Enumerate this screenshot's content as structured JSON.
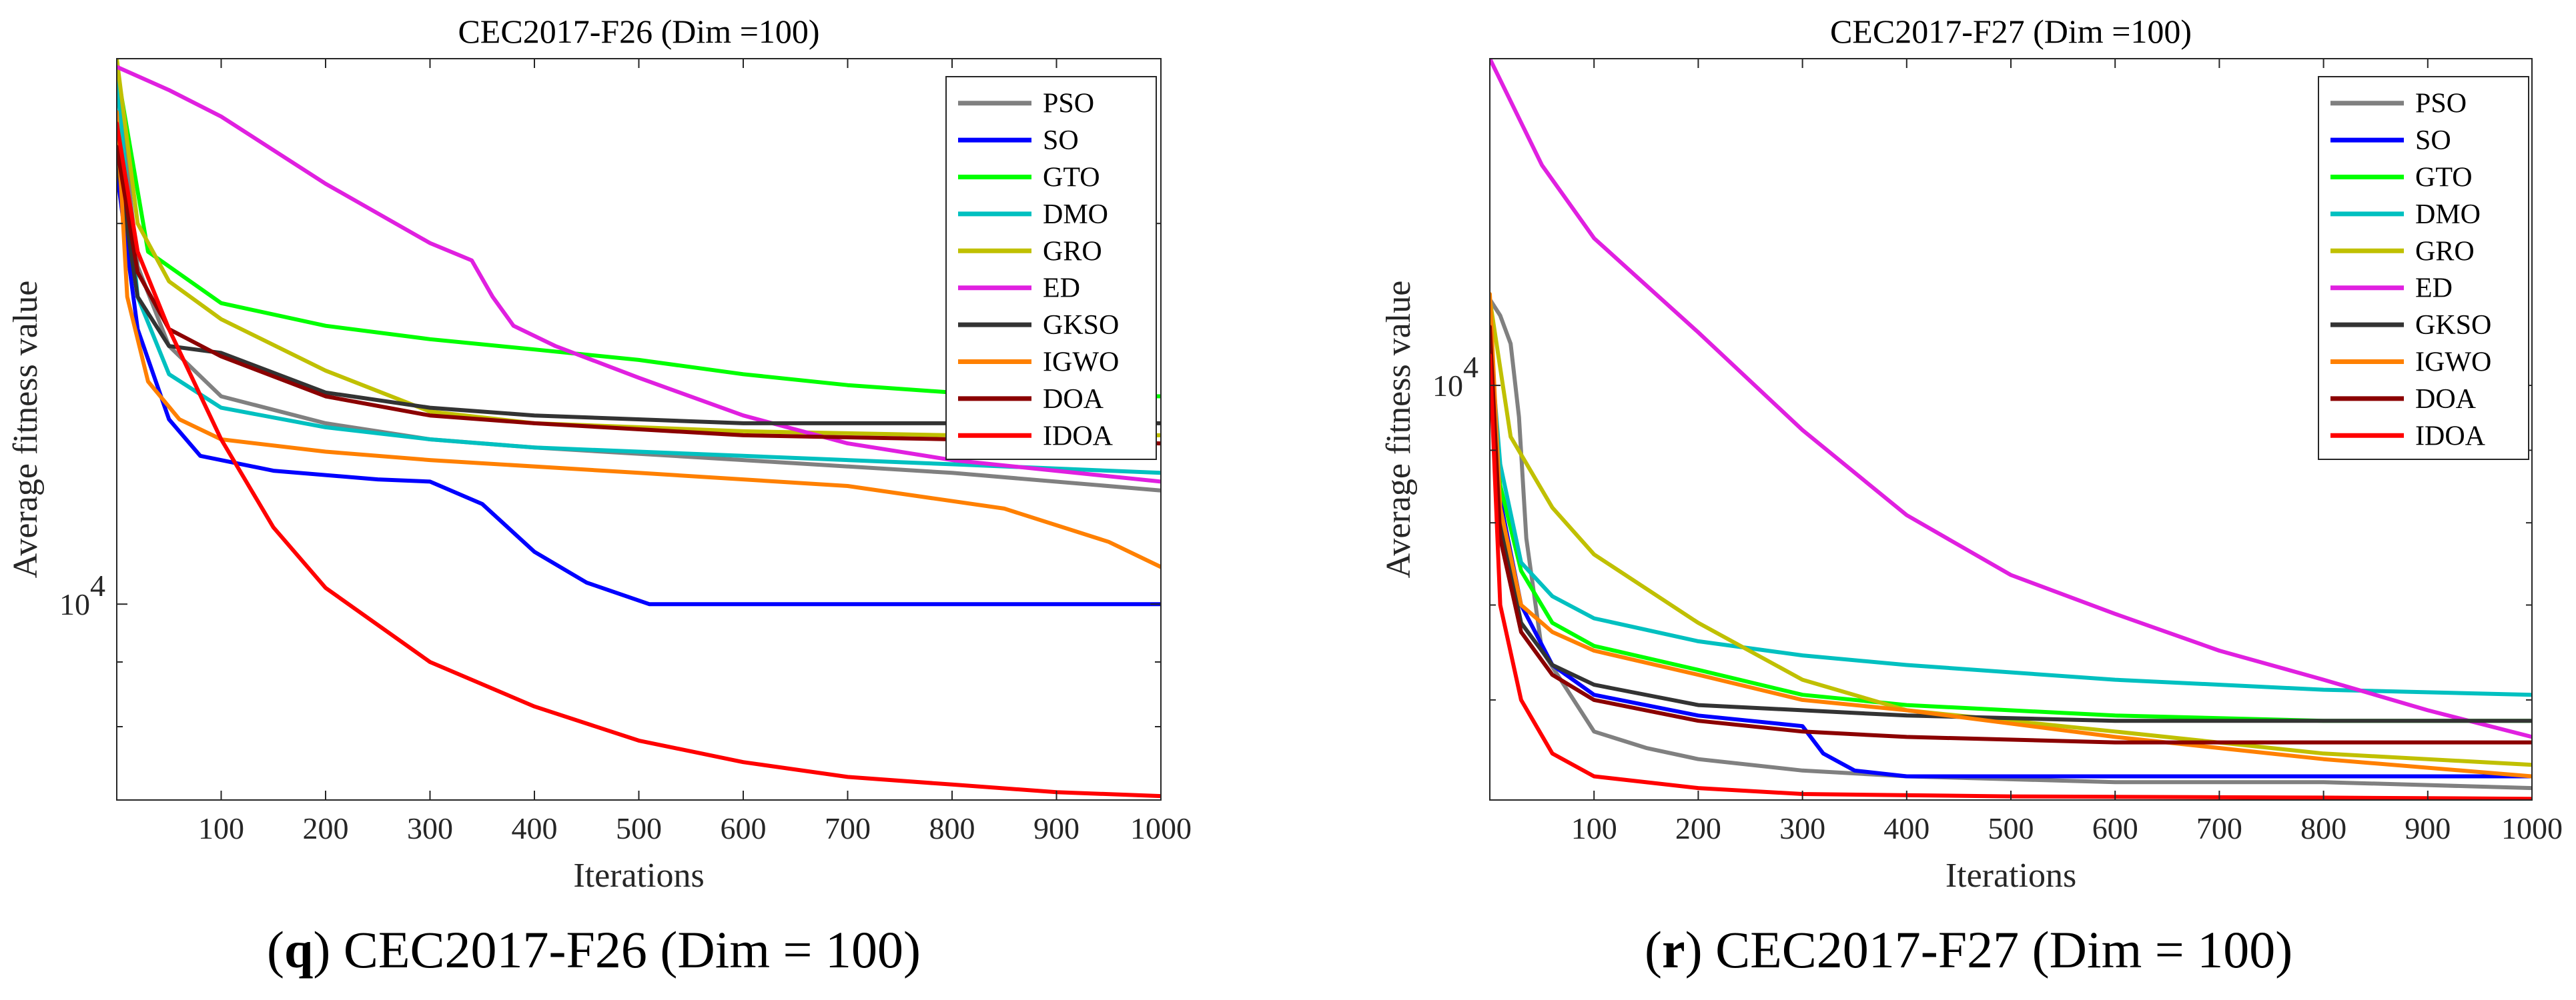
{
  "chart_data": [
    {
      "type": "line",
      "title": "CEC2017-F26 (Dim =100)",
      "caption_letter": "q",
      "caption_text": "CEC2017-F26 (Dim = 100)",
      "xlabel": "Iterations",
      "ylabel": "Average fitness value",
      "xlim": [
        0,
        1000
      ],
      "ylim": [
        7000,
        27000
      ],
      "yscale": "log",
      "xticks": [
        100,
        200,
        300,
        400,
        500,
        600,
        700,
        800,
        900,
        1000
      ],
      "ytick_label": {
        "base": "10",
        "exp": "4",
        "value": 10000
      },
      "legend_position": "top-right",
      "series": [
        {
          "name": "PSO",
          "color": "#808080",
          "points": [
            [
              0,
              26500
            ],
            [
              20,
              18500
            ],
            [
              50,
              16000
            ],
            [
              100,
              14600
            ],
            [
              200,
              13900
            ],
            [
              300,
              13500
            ],
            [
              400,
              13300
            ],
            [
              600,
              13000
            ],
            [
              800,
              12700
            ],
            [
              1000,
              12300
            ]
          ]
        },
        {
          "name": "SO",
          "color": "#0000ff",
          "points": [
            [
              0,
              22000
            ],
            [
              20,
              16500
            ],
            [
              50,
              14000
            ],
            [
              80,
              13100
            ],
            [
              150,
              12750
            ],
            [
              250,
              12550
            ],
            [
              300,
              12500
            ],
            [
              350,
              12000
            ],
            [
              400,
              11000
            ],
            [
              450,
              10400
            ],
            [
              510,
              10000
            ],
            [
              1000,
              10000
            ]
          ]
        },
        {
          "name": "GTO",
          "color": "#00ff00",
          "points": [
            [
              0,
              26500
            ],
            [
              30,
              19000
            ],
            [
              100,
              17300
            ],
            [
              200,
              16600
            ],
            [
              300,
              16200
            ],
            [
              400,
              15900
            ],
            [
              500,
              15600
            ],
            [
              600,
              15200
            ],
            [
              700,
              14900
            ],
            [
              800,
              14700
            ],
            [
              1000,
              14600
            ]
          ]
        },
        {
          "name": "DMO",
          "color": "#00c0c0",
          "points": [
            [
              0,
              26000
            ],
            [
              20,
              17500
            ],
            [
              50,
              15200
            ],
            [
              100,
              14300
            ],
            [
              200,
              13800
            ],
            [
              300,
              13500
            ],
            [
              400,
              13300
            ],
            [
              600,
              13100
            ],
            [
              800,
              12900
            ],
            [
              1000,
              12700
            ]
          ]
        },
        {
          "name": "GRO",
          "color": "#c0c000",
          "points": [
            [
              0,
              27000
            ],
            [
              20,
              20000
            ],
            [
              50,
              18000
            ],
            [
              100,
              16800
            ],
            [
              200,
              15300
            ],
            [
              300,
              14200
            ],
            [
              400,
              13900
            ],
            [
              600,
              13700
            ],
            [
              800,
              13600
            ],
            [
              1000,
              13600
            ]
          ]
        },
        {
          "name": "ED",
          "color": "#e020e0",
          "points": [
            [
              0,
              26600
            ],
            [
              50,
              25500
            ],
            [
              100,
              24300
            ],
            [
              200,
              21500
            ],
            [
              300,
              19300
            ],
            [
              340,
              18700
            ],
            [
              360,
              17500
            ],
            [
              380,
              16600
            ],
            [
              420,
              16000
            ],
            [
              500,
              15100
            ],
            [
              600,
              14100
            ],
            [
              700,
              13400
            ],
            [
              800,
              13000
            ],
            [
              1000,
              12500
            ]
          ]
        },
        {
          "name": "GKSO",
          "color": "#333333",
          "points": [
            [
              0,
              22500
            ],
            [
              20,
              17500
            ],
            [
              50,
              16000
            ],
            [
              100,
              15800
            ],
            [
              200,
              14700
            ],
            [
              300,
              14300
            ],
            [
              400,
              14100
            ],
            [
              600,
              13900
            ],
            [
              800,
              13900
            ],
            [
              1000,
              13900
            ]
          ]
        },
        {
          "name": "IGWO",
          "color": "#ff8000",
          "points": [
            [
              0,
              24500
            ],
            [
              10,
              17500
            ],
            [
              30,
              15000
            ],
            [
              60,
              14000
            ],
            [
              100,
              13500
            ],
            [
              200,
              13200
            ],
            [
              300,
              13000
            ],
            [
              500,
              12700
            ],
            [
              700,
              12400
            ],
            [
              850,
              11900
            ],
            [
              950,
              11200
            ],
            [
              1000,
              10700
            ]
          ]
        },
        {
          "name": "DOA",
          "color": "#8b0000",
          "points": [
            [
              0,
              23000
            ],
            [
              20,
              18300
            ],
            [
              50,
              16500
            ],
            [
              100,
              15700
            ],
            [
              200,
              14600
            ],
            [
              300,
              14100
            ],
            [
              400,
              13900
            ],
            [
              600,
              13600
            ],
            [
              800,
              13500
            ],
            [
              1000,
              13400
            ]
          ]
        },
        {
          "name": "IDOA",
          "color": "#ff0000",
          "points": [
            [
              0,
              24000
            ],
            [
              20,
              19000
            ],
            [
              50,
              16500
            ],
            [
              100,
              13500
            ],
            [
              150,
              11500
            ],
            [
              200,
              10300
            ],
            [
              300,
              9000
            ],
            [
              400,
              8300
            ],
            [
              500,
              7800
            ],
            [
              600,
              7500
            ],
            [
              700,
              7300
            ],
            [
              800,
              7200
            ],
            [
              900,
              7100
            ],
            [
              1000,
              7050
            ]
          ]
        }
      ]
    },
    {
      "type": "line",
      "title": "CEC2017-F27 (Dim =100)",
      "caption_letter": "r",
      "caption_text": "CEC2017-F27 (Dim = 100)",
      "xlabel": "Iterations",
      "ylabel": "Average fitness value",
      "xlim": [
        0,
        1000
      ],
      "ylim": [
        5100,
        17000
      ],
      "yscale": "log",
      "xticks": [
        100,
        200,
        300,
        400,
        500,
        600,
        700,
        800,
        900,
        1000
      ],
      "ytick_label": {
        "base": "10",
        "exp": "4",
        "value": 10000
      },
      "legend_position": "top-right",
      "series": [
        {
          "name": "PSO",
          "color": "#808080",
          "points": [
            [
              0,
              11500
            ],
            [
              10,
              11200
            ],
            [
              20,
              10700
            ],
            [
              28,
              9500
            ],
            [
              35,
              7800
            ],
            [
              50,
              6500
            ],
            [
              100,
              5700
            ],
            [
              150,
              5550
            ],
            [
              200,
              5450
            ],
            [
              300,
              5350
            ],
            [
              400,
              5300
            ],
            [
              600,
              5250
            ],
            [
              800,
              5250
            ],
            [
              1000,
              5200
            ]
          ]
        },
        {
          "name": "SO",
          "color": "#0000ff",
          "points": [
            [
              0,
              10000
            ],
            [
              10,
              8300
            ],
            [
              30,
              7000
            ],
            [
              60,
              6350
            ],
            [
              100,
              6050
            ],
            [
              200,
              5850
            ],
            [
              300,
              5750
            ],
            [
              320,
              5500
            ],
            [
              350,
              5350
            ],
            [
              400,
              5300
            ],
            [
              600,
              5300
            ],
            [
              800,
              5300
            ],
            [
              1000,
              5300
            ]
          ]
        },
        {
          "name": "GTO",
          "color": "#00ff00",
          "points": [
            [
              0,
              10000
            ],
            [
              10,
              8500
            ],
            [
              30,
              7400
            ],
            [
              60,
              6800
            ],
            [
              100,
              6550
            ],
            [
              200,
              6300
            ],
            [
              300,
              6050
            ],
            [
              400,
              5950
            ],
            [
              600,
              5850
            ],
            [
              800,
              5800
            ],
            [
              1000,
              5800
            ]
          ]
        },
        {
          "name": "DMO",
          "color": "#00c0c0",
          "points": [
            [
              0,
              10800
            ],
            [
              10,
              8800
            ],
            [
              30,
              7500
            ],
            [
              60,
              7100
            ],
            [
              100,
              6850
            ],
            [
              200,
              6600
            ],
            [
              300,
              6450
            ],
            [
              400,
              6350
            ],
            [
              600,
              6200
            ],
            [
              800,
              6100
            ],
            [
              1000,
              6050
            ]
          ]
        },
        {
          "name": "GRO",
          "color": "#c0c000",
          "points": [
            [
              0,
              11500
            ],
            [
              20,
              9200
            ],
            [
              60,
              8200
            ],
            [
              100,
              7600
            ],
            [
              200,
              6800
            ],
            [
              300,
              6200
            ],
            [
              400,
              5900
            ],
            [
              600,
              5700
            ],
            [
              800,
              5500
            ],
            [
              1000,
              5400
            ]
          ]
        },
        {
          "name": "ED",
          "color": "#e020e0",
          "points": [
            [
              0,
              17000
            ],
            [
              50,
              14300
            ],
            [
              100,
              12700
            ],
            [
              200,
              10900
            ],
            [
              300,
              9300
            ],
            [
              400,
              8100
            ],
            [
              500,
              7350
            ],
            [
              600,
              6900
            ],
            [
              700,
              6500
            ],
            [
              800,
              6200
            ],
            [
              900,
              5900
            ],
            [
              1000,
              5650
            ]
          ]
        },
        {
          "name": "GKSO",
          "color": "#333333",
          "points": [
            [
              0,
              11000
            ],
            [
              10,
              8000
            ],
            [
              30,
              6800
            ],
            [
              60,
              6350
            ],
            [
              100,
              6150
            ],
            [
              200,
              5950
            ],
            [
              300,
              5900
            ],
            [
              400,
              5850
            ],
            [
              600,
              5800
            ],
            [
              800,
              5800
            ],
            [
              1000,
              5800
            ]
          ]
        },
        {
          "name": "IGWO",
          "color": "#ff8000",
          "points": [
            [
              0,
              11600
            ],
            [
              10,
              8200
            ],
            [
              30,
              7000
            ],
            [
              60,
              6700
            ],
            [
              100,
              6500
            ],
            [
              200,
              6250
            ],
            [
              300,
              6000
            ],
            [
              400,
              5900
            ],
            [
              600,
              5650
            ],
            [
              800,
              5450
            ],
            [
              1000,
              5300
            ]
          ]
        },
        {
          "name": "DOA",
          "color": "#8b0000",
          "points": [
            [
              0,
              11000
            ],
            [
              10,
              7800
            ],
            [
              30,
              6700
            ],
            [
              60,
              6250
            ],
            [
              100,
              6000
            ],
            [
              200,
              5800
            ],
            [
              300,
              5700
            ],
            [
              400,
              5650
            ],
            [
              600,
              5600
            ],
            [
              800,
              5600
            ],
            [
              1000,
              5600
            ]
          ]
        },
        {
          "name": "IDOA",
          "color": "#ff0000",
          "points": [
            [
              0,
              10500
            ],
            [
              10,
              7000
            ],
            [
              30,
              6000
            ],
            [
              60,
              5500
            ],
            [
              100,
              5300
            ],
            [
              200,
              5200
            ],
            [
              300,
              5150
            ],
            [
              500,
              5130
            ],
            [
              800,
              5120
            ],
            [
              1000,
              5110
            ]
          ]
        }
      ]
    }
  ]
}
